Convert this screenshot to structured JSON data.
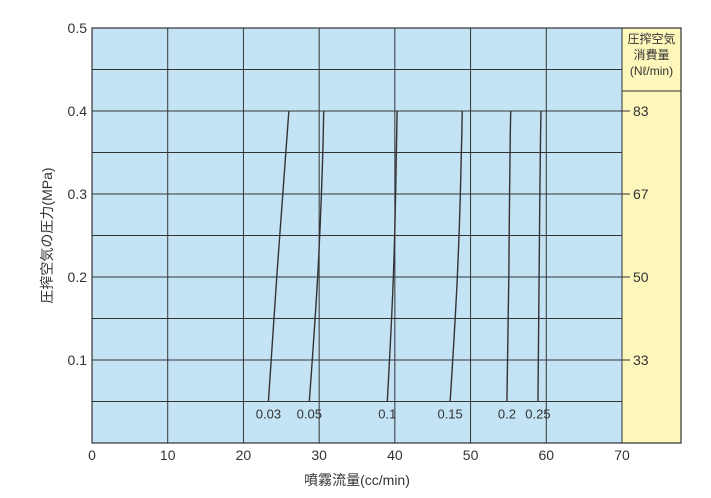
{
  "chart_data": {
    "type": "line",
    "xlabel": "噴霧流量(cc/min)",
    "ylabel": "圧搾空気の圧力(MPa)",
    "xlim": [
      0,
      70
    ],
    "ylim": [
      0,
      0.5
    ],
    "x_ticks": [
      "0",
      "10",
      "20",
      "30",
      "40",
      "50",
      "60",
      "70"
    ],
    "y_ticks": [
      "0.1",
      "0.2",
      "0.3",
      "0.4",
      "0.5"
    ],
    "grid": true,
    "series": [
      {
        "name": "0.03",
        "x": [
          23.3,
          24.0,
          24.8,
          25.6,
          26.0
        ],
        "y": [
          0.05,
          0.15,
          0.25,
          0.35,
          0.4
        ]
      },
      {
        "name": "0.05",
        "x": [
          28.7,
          29.5,
          30.1,
          30.5,
          30.6
        ],
        "y": [
          0.05,
          0.15,
          0.25,
          0.35,
          0.4
        ]
      },
      {
        "name": "0.1",
        "x": [
          39.0,
          39.6,
          40.0,
          40.2,
          40.3
        ],
        "y": [
          0.05,
          0.15,
          0.25,
          0.35,
          0.4
        ]
      },
      {
        "name": "0.15",
        "x": [
          47.3,
          48.0,
          48.5,
          48.8,
          48.9
        ],
        "y": [
          0.05,
          0.15,
          0.25,
          0.35,
          0.4
        ]
      },
      {
        "name": "0.2",
        "x": [
          54.8,
          55.0,
          55.1,
          55.2,
          55.3
        ],
        "y": [
          0.05,
          0.15,
          0.25,
          0.35,
          0.4
        ]
      },
      {
        "name": "0.25",
        "x": [
          58.9,
          59.0,
          59.1,
          59.2,
          59.3
        ],
        "y": [
          0.05,
          0.15,
          0.25,
          0.35,
          0.4
        ]
      }
    ],
    "secondary_axis": {
      "title_lines": [
        "圧搾空気",
        "消費量",
        "(Nℓ/min)"
      ],
      "ticks": [
        {
          "y": 0.4,
          "label": "83"
        },
        {
          "y": 0.3,
          "label": "67"
        },
        {
          "y": 0.2,
          "label": "50"
        },
        {
          "y": 0.1,
          "label": "33"
        }
      ]
    },
    "colors": {
      "plot_background": "#c4e4f6",
      "right_panel_background": "#fdf7bc",
      "grid": "#333333",
      "curve": "#333333",
      "text": "#333333"
    }
  }
}
